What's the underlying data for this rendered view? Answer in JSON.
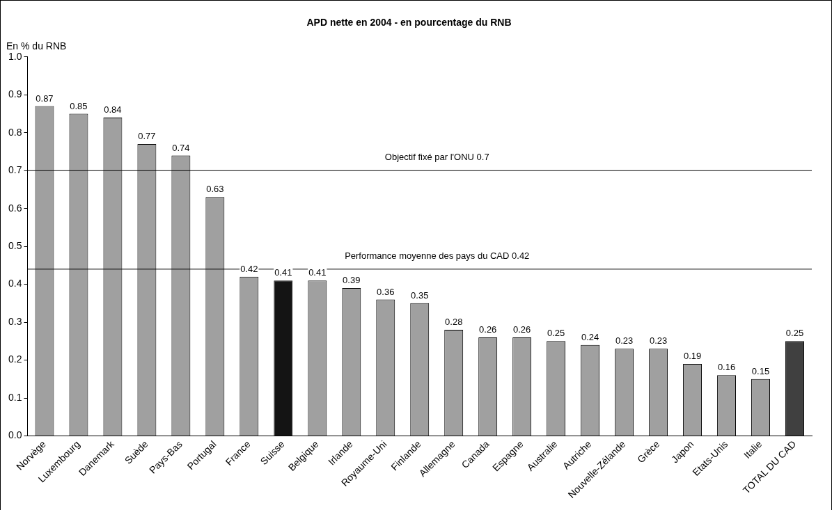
{
  "chart_data": {
    "type": "bar",
    "title": "APD nette en 2004 - en pourcentage du RNB",
    "ylabel": "En % du RNB",
    "categories": [
      "Norvège",
      "Luxembourg",
      "Danemark",
      "Suède",
      "Pays-Bas",
      "Portugal",
      "France",
      "Suisse",
      "Belgique",
      "Irlande",
      "Royaume-Uni",
      "Finlande",
      "Allemagne",
      "Canada",
      "Espagne",
      "Australie",
      "Autriche",
      "Nouvelle-Zélande",
      "Grèce",
      "Japon",
      "Etats-Unis",
      "Italie",
      "TOTAL DU CAD"
    ],
    "values": [
      0.87,
      0.85,
      0.84,
      0.77,
      0.74,
      0.63,
      0.42,
      0.41,
      0.41,
      0.39,
      0.36,
      0.35,
      0.28,
      0.26,
      0.26,
      0.25,
      0.24,
      0.23,
      0.23,
      0.19,
      0.16,
      0.15,
      0.25
    ],
    "colors": [
      "#a0a0a0",
      "#a0a0a0",
      "#a0a0a0",
      "#a0a0a0",
      "#a0a0a0",
      "#a0a0a0",
      "#a0a0a0",
      "#141414",
      "#a0a0a0",
      "#a0a0a0",
      "#a0a0a0",
      "#a0a0a0",
      "#a0a0a0",
      "#a0a0a0",
      "#a0a0a0",
      "#a0a0a0",
      "#a0a0a0",
      "#a0a0a0",
      "#a0a0a0",
      "#a0a0a0",
      "#a0a0a0",
      "#a0a0a0",
      "#404040"
    ],
    "ylim": [
      0,
      1
    ],
    "yticks": [
      {
        "value": 0,
        "label": "0.0"
      },
      {
        "value": 0.1,
        "label": "0.1"
      },
      {
        "value": 0.2,
        "label": "0.2"
      },
      {
        "value": 0.3,
        "label": "0.3"
      },
      {
        "value": 0.4,
        "label": "0.4"
      },
      {
        "value": 0.5,
        "label": "0.5"
      },
      {
        "value": 0.6,
        "label": "0.6"
      },
      {
        "value": 0.7,
        "label": "0.7"
      },
      {
        "value": 0.8,
        "label": "0.8"
      },
      {
        "value": 0.9,
        "label": "0.9"
      },
      {
        "value": 1,
        "label": "1.0"
      }
    ],
    "ref_lines": [
      {
        "axis": "y",
        "value": 0.7,
        "label": "Objectif fixé par l'ONU 0.7",
        "color": "#000000"
      },
      {
        "axis": "y",
        "value": 0.44,
        "label": "Performance moyenne des pays du CAD 0.42",
        "color": "#000000"
      }
    ],
    "data_labels": true,
    "grid": false,
    "legend": false
  }
}
